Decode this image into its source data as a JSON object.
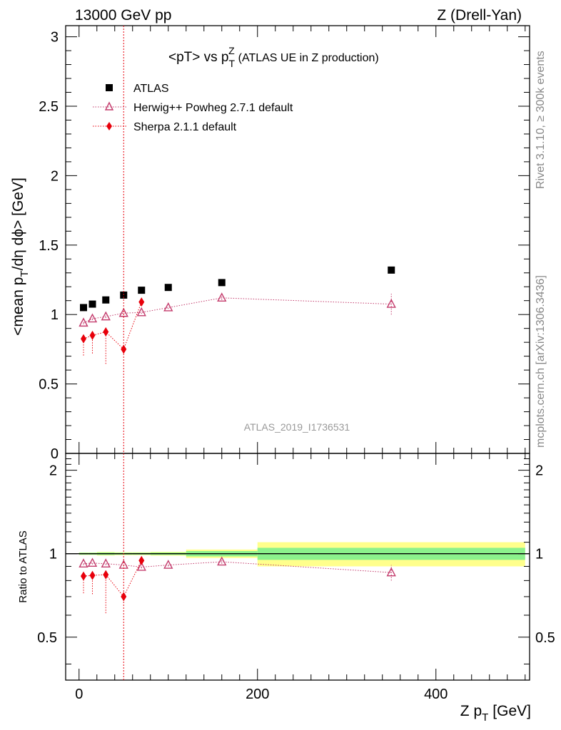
{
  "header": {
    "left": "13000 GeV pp",
    "right": "Z (Drell-Yan)"
  },
  "side": {
    "rivet": "Rivet 3.1.10, ≥ 300k events",
    "mcplots": "mcplots.cern.ch [arXiv:1306.3436]"
  },
  "chart_data": {
    "type": "scatter",
    "title": {
      "main": "<pT> vs p",
      "sup": "Z",
      "sub": "T",
      "paren": "(ATLAS UE in Z production)"
    },
    "watermark": "ATLAS_2019_I1736531",
    "ylabel": {
      "a": "<mean p",
      "a_sub": "T",
      "b": "/dη dϕ> [GeV]"
    },
    "xlabel": {
      "a": "Z p",
      "sub": "T",
      "b": "[GeV]"
    },
    "ratio_ylabel": "Ratio to ATLAS",
    "xlim": [
      -15,
      505
    ],
    "ylim": [
      0,
      3.08
    ],
    "ratio_ylim": [
      0.35,
      2.3
    ],
    "vline_x": 50,
    "xticks": [
      "0",
      "200",
      "400"
    ],
    "xtick_values": [
      0,
      200,
      400
    ],
    "yticks": [
      "0",
      "0.5",
      "1",
      "1.5",
      "2",
      "2.5",
      "3"
    ],
    "ytick_values": [
      0,
      0.5,
      1,
      1.5,
      2,
      2.5,
      3
    ],
    "ratio_yticks": [
      "0.5",
      "1",
      "2"
    ],
    "ratio_ytick_values": [
      0.5,
      1,
      2
    ],
    "legend": [
      "ATLAS",
      "Herwig++ Powheg 2.7.1 default",
      "Sherpa 2.1.1 default"
    ],
    "colors": {
      "atlas": "#000000",
      "herwig": "#c33b6c",
      "sherpa": "#e8000b",
      "band_inner": "#8cf28c",
      "band_outer": "#ffff8c"
    },
    "series": [
      {
        "name": "ATLAS",
        "x": [
          5,
          15,
          30,
          50,
          70,
          100,
          160,
          350
        ],
        "y": [
          1.05,
          1.075,
          1.105,
          1.14,
          1.175,
          1.195,
          1.23,
          1.32
        ]
      },
      {
        "name": "Herwig++ Powheg 2.7.1 default",
        "x": [
          5,
          15,
          30,
          50,
          70,
          100,
          160,
          350
        ],
        "y": [
          0.94,
          0.97,
          0.985,
          1.01,
          1.015,
          1.05,
          1.12,
          1.075
        ],
        "err": [
          0.01,
          0.01,
          0.01,
          0.01,
          0.01,
          0.01,
          0.015,
          0.075
        ]
      },
      {
        "name": "Sherpa 2.1.1 default",
        "x": [
          5,
          15,
          30,
          50,
          70
        ],
        "y": [
          0.825,
          0.85,
          0.875,
          0.75,
          1.09
        ],
        "err_lo": [
          0.12,
          0.13,
          0.23,
          0.01,
          0.01
        ],
        "err_hi": [
          0.01,
          0.01,
          0.01,
          0.01,
          0.01
        ]
      }
    ],
    "ratio_series": [
      {
        "name": "Herwig++ Powheg 2.7.1 default",
        "x": [
          5,
          15,
          30,
          50,
          70,
          100,
          160,
          350
        ],
        "y": [
          0.92,
          0.925,
          0.92,
          0.91,
          0.895,
          0.91,
          0.935,
          0.855
        ],
        "err": [
          0.01,
          0.01,
          0.01,
          0.01,
          0.01,
          0.01,
          0.015,
          0.055
        ]
      },
      {
        "name": "Sherpa 2.1.1 default",
        "x": [
          5,
          15,
          30,
          50,
          70
        ],
        "y": [
          0.83,
          0.835,
          0.84,
          0.7,
          0.945
        ],
        "err_lo": [
          0.11,
          0.12,
          0.23,
          0.01,
          0.01
        ],
        "err_hi": [
          0.01,
          0.01,
          0.01,
          0.01,
          0.01
        ]
      }
    ],
    "bands": [
      {
        "x0": 0,
        "x1": 10,
        "inner": 0.008,
        "outer": 0.01
      },
      {
        "x0": 10,
        "x1": 20,
        "inner": 0.008,
        "outer": 0.01
      },
      {
        "x0": 20,
        "x1": 40,
        "inner": 0.01,
        "outer": 0.015
      },
      {
        "x0": 40,
        "x1": 60,
        "inner": 0.008,
        "outer": 0.012
      },
      {
        "x0": 60,
        "x1": 80,
        "inner": 0.008,
        "outer": 0.012
      },
      {
        "x0": 80,
        "x1": 120,
        "inner": 0.01,
        "outer": 0.016
      },
      {
        "x0": 120,
        "x1": 200,
        "inner": 0.022,
        "outer": 0.035
      },
      {
        "x0": 200,
        "x1": 500,
        "inner": 0.05,
        "outer": 0.1
      }
    ]
  }
}
